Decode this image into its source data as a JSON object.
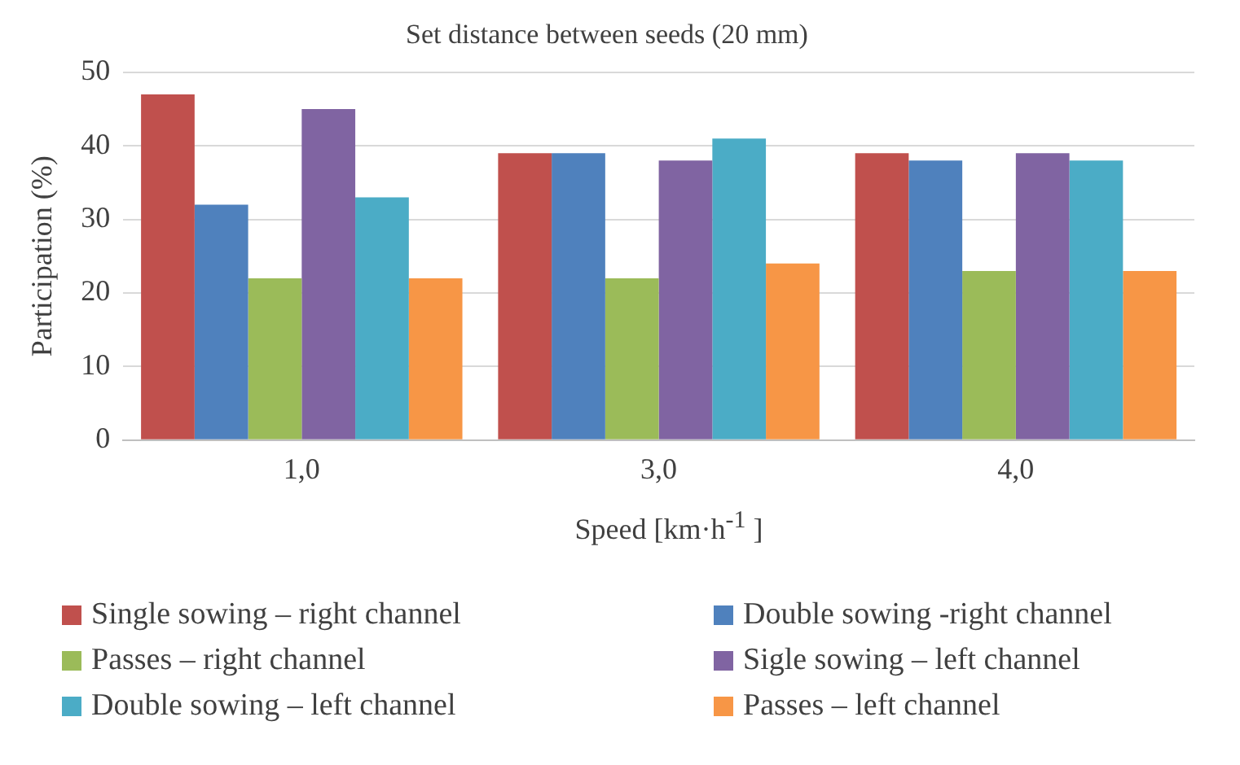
{
  "chart_data": {
    "type": "bar",
    "title": "Set distance between seeds (20 mm)",
    "xlabel": "Speed [km·h$^{-1}$ ]",
    "ylabel": "Participation (%)",
    "categories": [
      "1,0",
      "3,0",
      "4,0"
    ],
    "series": [
      {
        "name": "Single sowing – right channel",
        "color": "#c0504d",
        "values": [
          47,
          39,
          39
        ]
      },
      {
        "name": "Double sowing -right channel",
        "color": "#4f81bd",
        "values": [
          32,
          39,
          38
        ]
      },
      {
        "name": "Passes – right channel",
        "color": "#9bbb59",
        "values": [
          22,
          22,
          23
        ]
      },
      {
        "name": "Sigle sowing – left channel",
        "color": "#8064a2",
        "values": [
          45,
          38,
          39
        ]
      },
      {
        "name": "Double sowing – left channel",
        "color": "#4bacc6",
        "values": [
          33,
          41,
          38
        ]
      },
      {
        "name": "Passes – left channel",
        "color": "#f79646",
        "values": [
          22,
          24,
          23
        ]
      }
    ],
    "ylim": [
      0,
      50
    ],
    "yticks": [
      0,
      10,
      20,
      30,
      40,
      50
    ],
    "grid": "y",
    "legend": "bottom"
  }
}
